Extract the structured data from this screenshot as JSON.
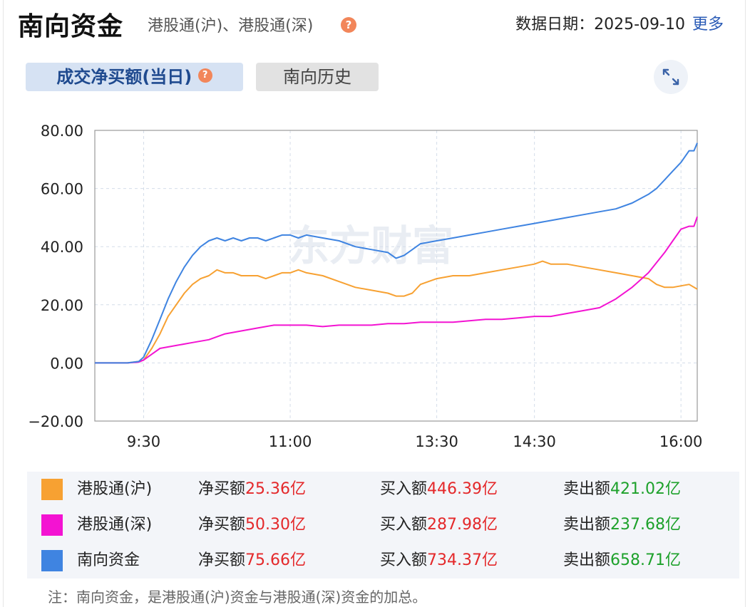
{
  "header": {
    "title": "南向资金",
    "subtitle": "港股通(沪)、港股通(深)",
    "help_glyph": "?",
    "date_label": "数据日期：",
    "date_value": "2025-09-10",
    "more_label": "更多"
  },
  "tabs": [
    {
      "label": "成交净买额(当日)",
      "active": true
    },
    {
      "label": "南向历史",
      "active": false
    }
  ],
  "expand_icon": "expand-arrows-icon",
  "watermark": "东方财富",
  "colors": {
    "hgt_sh": "#f7a132",
    "hgt_sz": "#f313d2",
    "southbound": "#3f84e1",
    "up": "#e4282a",
    "down": "#1da12b"
  },
  "chart_data": {
    "type": "line",
    "xlabel": "",
    "ylabel": "",
    "ylim": [
      -20,
      80
    ],
    "y_ticks": [
      "80.00",
      "60.00",
      "40.00",
      "20.00",
      "0.00",
      "−20.00"
    ],
    "y_tick_values": [
      80,
      60,
      40,
      20,
      0,
      -20
    ],
    "x_ticks": [
      "9:30",
      "11:00",
      "13:30",
      "14:30",
      "16:00"
    ],
    "x_tick_positions": [
      30,
      120,
      210,
      270,
      360
    ],
    "x_range": [
      0,
      370
    ],
    "x_unit": "trading minutes since 9:00",
    "grid": true,
    "series": [
      {
        "name": "港股通(沪)",
        "color": "#f7a132",
        "points": [
          [
            0,
            0
          ],
          [
            20,
            0
          ],
          [
            27,
            0.5
          ],
          [
            30,
            1
          ],
          [
            35,
            5
          ],
          [
            40,
            10
          ],
          [
            45,
            16
          ],
          [
            50,
            20
          ],
          [
            55,
            24
          ],
          [
            60,
            27
          ],
          [
            65,
            29
          ],
          [
            70,
            30
          ],
          [
            75,
            32
          ],
          [
            80,
            31
          ],
          [
            85,
            31
          ],
          [
            90,
            30
          ],
          [
            95,
            30
          ],
          [
            100,
            30
          ],
          [
            105,
            29
          ],
          [
            110,
            30
          ],
          [
            115,
            31
          ],
          [
            120,
            31
          ],
          [
            125,
            32
          ],
          [
            130,
            31
          ],
          [
            140,
            30
          ],
          [
            150,
            28
          ],
          [
            160,
            26
          ],
          [
            170,
            25
          ],
          [
            180,
            24
          ],
          [
            185,
            23
          ],
          [
            190,
            23
          ],
          [
            195,
            24
          ],
          [
            200,
            27
          ],
          [
            210,
            29
          ],
          [
            220,
            30
          ],
          [
            230,
            30
          ],
          [
            240,
            31
          ],
          [
            250,
            32
          ],
          [
            260,
            33
          ],
          [
            270,
            34
          ],
          [
            275,
            35
          ],
          [
            280,
            34
          ],
          [
            290,
            34
          ],
          [
            300,
            33
          ],
          [
            310,
            32
          ],
          [
            320,
            31
          ],
          [
            330,
            30
          ],
          [
            340,
            29
          ],
          [
            345,
            27
          ],
          [
            350,
            26
          ],
          [
            355,
            26
          ],
          [
            365,
            27
          ],
          [
            370,
            25.36
          ]
        ]
      },
      {
        "name": "港股通(深)",
        "color": "#f313d2",
        "points": [
          [
            0,
            0
          ],
          [
            20,
            0
          ],
          [
            27,
            0.3
          ],
          [
            30,
            1
          ],
          [
            35,
            3
          ],
          [
            40,
            5
          ],
          [
            50,
            6
          ],
          [
            60,
            7
          ],
          [
            70,
            8
          ],
          [
            80,
            10
          ],
          [
            90,
            11
          ],
          [
            100,
            12
          ],
          [
            110,
            13
          ],
          [
            120,
            13
          ],
          [
            130,
            13
          ],
          [
            140,
            12.5
          ],
          [
            150,
            13
          ],
          [
            160,
            13
          ],
          [
            170,
            13
          ],
          [
            180,
            13.5
          ],
          [
            190,
            13.5
          ],
          [
            200,
            14
          ],
          [
            210,
            14
          ],
          [
            220,
            14
          ],
          [
            230,
            14.5
          ],
          [
            240,
            15
          ],
          [
            250,
            15
          ],
          [
            260,
            15.5
          ],
          [
            270,
            16
          ],
          [
            280,
            16
          ],
          [
            290,
            17
          ],
          [
            300,
            18
          ],
          [
            310,
            19
          ],
          [
            320,
            22
          ],
          [
            330,
            26
          ],
          [
            340,
            31
          ],
          [
            350,
            38
          ],
          [
            355,
            42
          ],
          [
            360,
            46
          ],
          [
            365,
            47
          ],
          [
            368,
            47
          ],
          [
            370,
            50.3
          ]
        ]
      },
      {
        "name": "南向资金",
        "color": "#3f84e1",
        "points": [
          [
            0,
            0
          ],
          [
            20,
            0
          ],
          [
            27,
            0.5
          ],
          [
            30,
            2
          ],
          [
            35,
            8
          ],
          [
            40,
            15
          ],
          [
            45,
            22
          ],
          [
            50,
            28
          ],
          [
            55,
            33
          ],
          [
            60,
            37
          ],
          [
            65,
            40
          ],
          [
            70,
            42
          ],
          [
            75,
            43
          ],
          [
            80,
            42
          ],
          [
            85,
            43
          ],
          [
            90,
            42
          ],
          [
            95,
            43
          ],
          [
            100,
            43
          ],
          [
            105,
            42
          ],
          [
            110,
            43
          ],
          [
            115,
            44
          ],
          [
            120,
            44
          ],
          [
            125,
            43
          ],
          [
            130,
            44
          ],
          [
            140,
            43
          ],
          [
            150,
            42
          ],
          [
            160,
            40
          ],
          [
            170,
            39
          ],
          [
            180,
            38
          ],
          [
            185,
            36
          ],
          [
            190,
            37
          ],
          [
            195,
            39
          ],
          [
            200,
            41
          ],
          [
            210,
            42
          ],
          [
            220,
            43
          ],
          [
            230,
            44
          ],
          [
            240,
            45
          ],
          [
            250,
            46
          ],
          [
            260,
            47
          ],
          [
            270,
            48
          ],
          [
            280,
            49
          ],
          [
            290,
            50
          ],
          [
            300,
            51
          ],
          [
            310,
            52
          ],
          [
            320,
            53
          ],
          [
            330,
            55
          ],
          [
            340,
            58
          ],
          [
            345,
            60
          ],
          [
            350,
            63
          ],
          [
            355,
            66
          ],
          [
            360,
            69
          ],
          [
            365,
            73
          ],
          [
            368,
            73
          ],
          [
            370,
            75.66
          ]
        ]
      }
    ]
  },
  "legend": [
    {
      "name": "港股通(沪)",
      "color": "#f7a132",
      "net_label": "净买额",
      "net_value": "25.36亿",
      "buy_label": "买入额",
      "buy_value": "446.39亿",
      "sell_label": "卖出额",
      "sell_value": "421.02亿"
    },
    {
      "name": "港股通(深)",
      "color": "#f313d2",
      "net_label": "净买额",
      "net_value": "50.30亿",
      "buy_label": "买入额",
      "buy_value": "287.98亿",
      "sell_label": "卖出额",
      "sell_value": "237.68亿"
    },
    {
      "name": "南向资金",
      "color": "#3f84e1",
      "net_label": "净买额",
      "net_value": "75.66亿",
      "buy_label": "买入额",
      "buy_value": "734.37亿",
      "sell_label": "卖出额",
      "sell_value": "658.71亿"
    }
  ],
  "note": "注：南向资金，是港股通(沪)资金与港股通(深)资金的加总。"
}
